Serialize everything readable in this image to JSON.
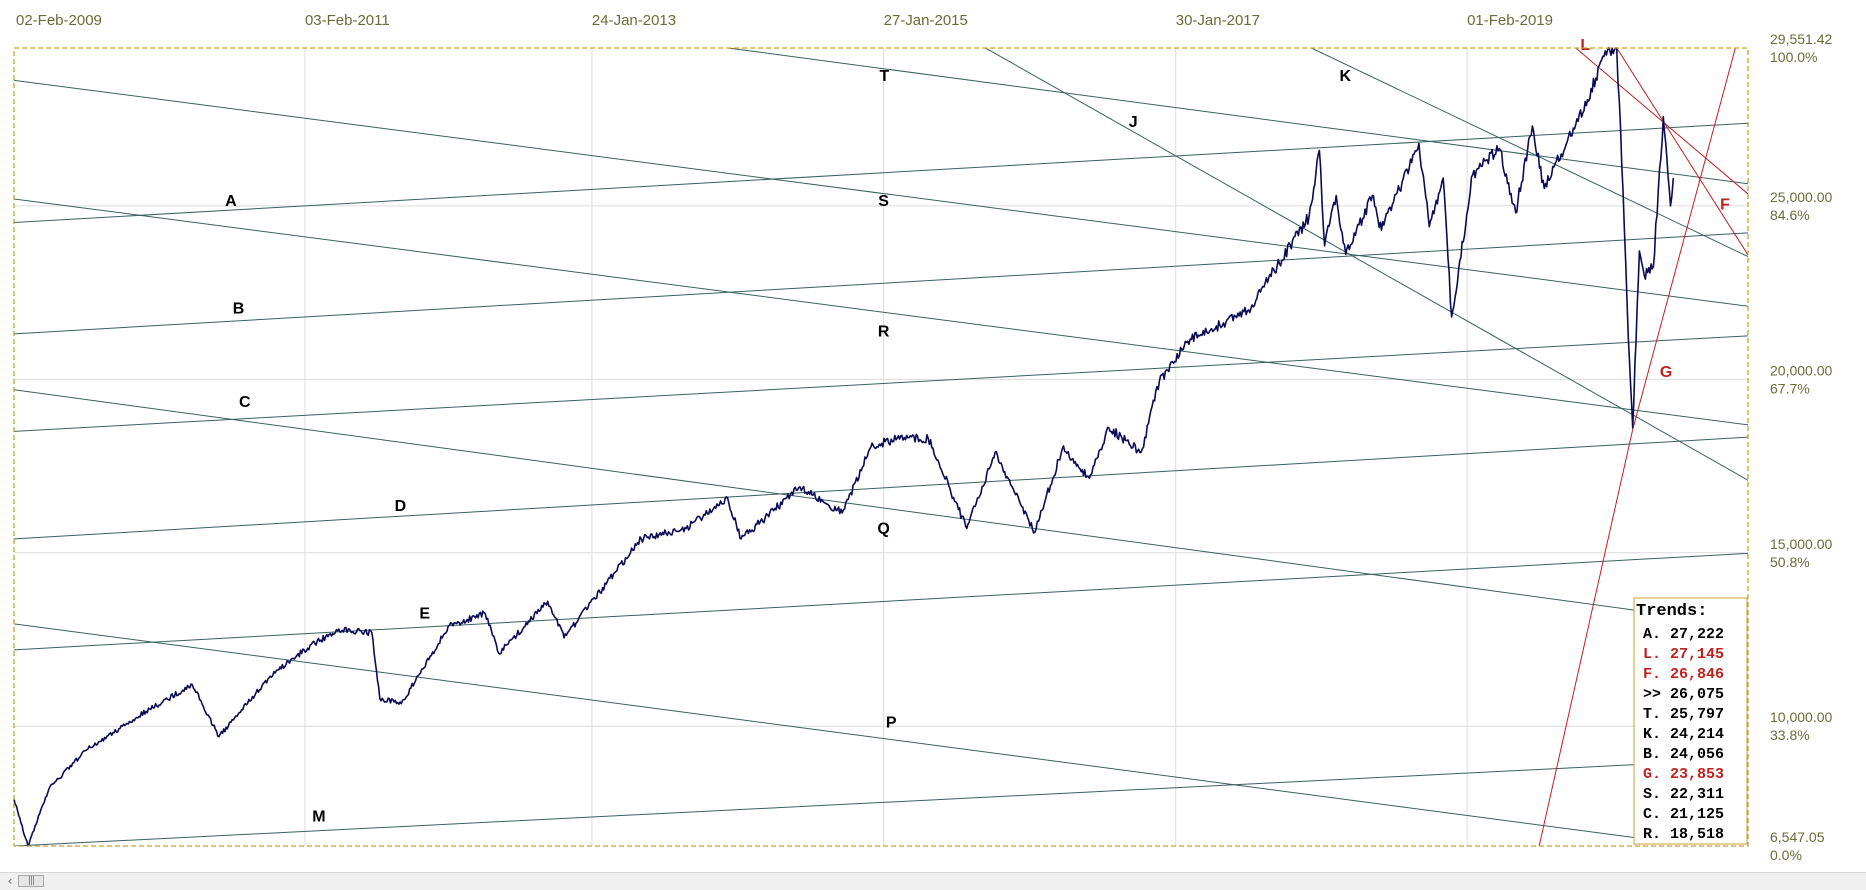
{
  "chart_data": {
    "type": "line",
    "title": "",
    "xlabel": "",
    "ylabel": "",
    "x_ticks": [
      "02-Feb-2009",
      "03-Feb-2011",
      "24-Jan-2013",
      "27-Jan-2015",
      "30-Jan-2017",
      "01-Feb-2019"
    ],
    "y_price_ticks": [
      "29,551.42",
      "25,000.00",
      "20,000.00",
      "15,000.00",
      "10,000.00",
      "6,547.05"
    ],
    "y_pct_ticks": [
      "100.0%",
      "84.6%",
      "67.7%",
      "50.8%",
      "33.8%",
      "0.0%"
    ],
    "ylim": [
      6547.05,
      29551.42
    ],
    "grid": true,
    "price_series": {
      "name": "",
      "color": "#0b0b55",
      "points": [
        [
          "2009-02-02",
          7900
        ],
        [
          "2009-03-09",
          6547
        ],
        [
          "2009-05-01",
          8200
        ],
        [
          "2009-08-01",
          9300
        ],
        [
          "2009-12-31",
          10430
        ],
        [
          "2010-04-26",
          11200
        ],
        [
          "2010-07-02",
          9700
        ],
        [
          "2010-11-05",
          11400
        ],
        [
          "2011-02-01",
          12200
        ],
        [
          "2011-04-29",
          12800
        ],
        [
          "2011-07-21",
          12700
        ],
        [
          "2011-08-10",
          10800
        ],
        [
          "2011-10-03",
          10650
        ],
        [
          "2012-02-01",
          12900
        ],
        [
          "2012-05-01",
          13250
        ],
        [
          "2012-06-04",
          12100
        ],
        [
          "2012-10-05",
          13600
        ],
        [
          "2012-11-15",
          12550
        ],
        [
          "2013-03-01",
          14100
        ],
        [
          "2013-05-28",
          15400
        ],
        [
          "2013-09-18",
          15700
        ],
        [
          "2013-12-31",
          16580
        ],
        [
          "2014-02-03",
          15400
        ],
        [
          "2014-07-01",
          16900
        ],
        [
          "2014-10-15",
          16150
        ],
        [
          "2014-12-26",
          18050
        ],
        [
          "2015-03-02",
          18300
        ],
        [
          "2015-05-19",
          18300
        ],
        [
          "2015-08-24",
          15700
        ],
        [
          "2015-11-03",
          17900
        ],
        [
          "2016-02-11",
          15600
        ],
        [
          "2016-04-20",
          18000
        ],
        [
          "2016-06-27",
          17150
        ],
        [
          "2016-08-15",
          18600
        ],
        [
          "2016-11-04",
          17900
        ],
        [
          "2016-12-20",
          19950
        ],
        [
          "2017-03-01",
          21100
        ],
        [
          "2017-08-01",
          22000
        ],
        [
          "2017-12-31",
          24700
        ],
        [
          "2018-01-26",
          26600
        ],
        [
          "2018-02-08",
          23850
        ],
        [
          "2018-03-09",
          25300
        ],
        [
          "2018-04-02",
          23600
        ],
        [
          "2018-06-08",
          25300
        ],
        [
          "2018-07-01",
          24300
        ],
        [
          "2018-10-03",
          26800
        ],
        [
          "2018-10-29",
          24400
        ],
        [
          "2018-12-03",
          25800
        ],
        [
          "2018-12-24",
          21800
        ],
        [
          "2019-02-15",
          25900
        ],
        [
          "2019-04-23",
          26650
        ],
        [
          "2019-06-03",
          24800
        ],
        [
          "2019-07-15",
          27300
        ],
        [
          "2019-08-14",
          25500
        ],
        [
          "2019-11-01",
          27350
        ],
        [
          "2020-01-17",
          29350
        ],
        [
          "2020-02-12",
          29551
        ],
        [
          "2020-02-28",
          25400
        ],
        [
          "2020-03-12",
          21200
        ],
        [
          "2020-03-23",
          18600
        ],
        [
          "2020-04-09",
          23700
        ],
        [
          "2020-04-21",
          23000
        ],
        [
          "2020-05-14",
          23250
        ],
        [
          "2020-06-08",
          27570
        ],
        [
          "2020-06-26",
          25000
        ],
        [
          "2020-07-03",
          25800
        ]
      ]
    },
    "trend_lines": [
      {
        "label": "A",
        "color": "#3a6060",
        "p1": [
          "2009-02-02",
          24520
        ],
        "p2": [
          "2021-02-01",
          27400
        ]
      },
      {
        "label": "B",
        "color": "#3a6060",
        "p1": [
          "2009-02-02",
          21310
        ],
        "p2": [
          "2021-02-01",
          24240
        ]
      },
      {
        "label": "C",
        "color": "#3a6060",
        "p1": [
          "2009-02-02",
          18500
        ],
        "p2": [
          "2021-02-01",
          21270
        ]
      },
      {
        "label": "D",
        "color": "#3a6060",
        "p1": [
          "2009-02-02",
          15400
        ],
        "p2": [
          "2021-02-01",
          18350
        ]
      },
      {
        "label": "E",
        "color": "#3a6060",
        "p1": [
          "2009-02-02",
          12200
        ],
        "p2": [
          "2021-02-01",
          15000
        ]
      },
      {
        "label": "M",
        "color": "#3a6060",
        "p1": [
          "2009-02-02",
          6547
        ],
        "p2": [
          "2021-02-01",
          9070
        ]
      },
      {
        "label": "T",
        "color": "#3a6060",
        "p1": [
          "2014-01-01",
          29551
        ],
        "p2": [
          "2021-02-01",
          25600
        ]
      },
      {
        "label": "S",
        "color": "#3a6060",
        "p1": [
          "2009-02-02",
          28620
        ],
        "p2": [
          "2021-02-01",
          22070
        ]
      },
      {
        "label": "R",
        "color": "#3a6060",
        "p1": [
          "2009-02-02",
          25200
        ],
        "p2": [
          "2021-02-01",
          18650
        ]
      },
      {
        "label": "Q",
        "color": "#3a6060",
        "p1": [
          "2009-02-02",
          19700
        ],
        "p2": [
          "2020-08-01",
          13150
        ]
      },
      {
        "label": "P",
        "color": "#3a6060",
        "p1": [
          "2009-02-02",
          12950
        ],
        "p2": [
          "2020-08-01",
          6600
        ]
      },
      {
        "label": "J",
        "color": "#3a6060",
        "p1": [
          "2015-10-10",
          29551
        ],
        "p2": [
          "2021-02-01",
          16930
        ]
      },
      {
        "label": "K",
        "color": "#3a6060",
        "p1": [
          "2018-01-06",
          29551
        ],
        "p2": [
          "2021-02-01",
          23400
        ]
      },
      {
        "label": "L",
        "color": "#c02020",
        "p1": [
          "2019-11-01",
          29551
        ],
        "p2": [
          "2021-02-01",
          25100
        ]
      },
      {
        "label": "F",
        "color": "#c02020",
        "p1": [
          "2020-02-12",
          29551
        ],
        "p2": [
          "2021-02-01",
          23130
        ]
      },
      {
        "label": "G",
        "color": "#c02020",
        "p1": [
          "2020-03-23",
          18550
        ],
        "p2": [
          "2020-12-06",
          29551
        ]
      },
      {
        "label": "G-lower",
        "color": "#c02020",
        "p1": [
          "2019-08-01",
          6547
        ],
        "p2": [
          "2020-03-23",
          18550
        ]
      }
    ],
    "trend_labels": [
      {
        "text": "A",
        "color": "#000000",
        "date": "2010-08-01",
        "value": 25000
      },
      {
        "text": "B",
        "color": "#000000",
        "date": "2010-08-20",
        "value": 21900
      },
      {
        "text": "C",
        "color": "#000000",
        "date": "2010-09-05",
        "value": 19200
      },
      {
        "text": "D",
        "color": "#000000",
        "date": "2011-10-01",
        "value": 16200
      },
      {
        "text": "E",
        "color": "#000000",
        "date": "2011-12-01",
        "value": 13100
      },
      {
        "text": "M",
        "color": "#000000",
        "date": "2011-03-10",
        "value": 7250
      },
      {
        "text": "T",
        "color": "#000000",
        "date": "2015-01-29",
        "value": 28600
      },
      {
        "text": "S",
        "color": "#000000",
        "date": "2015-01-27",
        "value": 24990
      },
      {
        "text": "R",
        "color": "#000000",
        "date": "2015-01-27",
        "value": 21230
      },
      {
        "text": "Q",
        "color": "#000000",
        "date": "2015-01-27",
        "value": 15550
      },
      {
        "text": "P",
        "color": "#000000",
        "date": "2015-02-15",
        "value": 9960
      },
      {
        "text": "J",
        "color": "#000000",
        "date": "2016-10-15",
        "value": 27280
      },
      {
        "text": "K",
        "color": "#000000",
        "date": "2018-04-01",
        "value": 28600
      },
      {
        "text": "L",
        "color": "#c02020",
        "date": "2019-11-25",
        "value": 29500
      },
      {
        "text": "F",
        "color": "#c02020",
        "date": "2020-11-10",
        "value": 24900
      },
      {
        "text": "G",
        "color": "#c02020",
        "date": "2020-06-15",
        "value": 20060
      }
    ],
    "legend": {
      "title": "Trends:",
      "position": "bottom-right",
      "rows": [
        {
          "letter": "A.",
          "value": "27,222",
          "color": "#000000"
        },
        {
          "letter": "L.",
          "value": "27,145",
          "color": "#c02020"
        },
        {
          "letter": "F.",
          "value": "26,846",
          "color": "#c02020"
        },
        {
          "letter": ">>",
          "value": "26,075",
          "color": "#000000"
        },
        {
          "letter": "T.",
          "value": "25,797",
          "color": "#000000"
        },
        {
          "letter": "K.",
          "value": "24,214",
          "color": "#000000"
        },
        {
          "letter": "B.",
          "value": "24,056",
          "color": "#000000"
        },
        {
          "letter": "G.",
          "value": "23,853",
          "color": "#c02020"
        },
        {
          "letter": "S.",
          "value": "22,311",
          "color": "#000000"
        },
        {
          "letter": "C.",
          "value": "21,125",
          "color": "#000000"
        },
        {
          "letter": "R.",
          "value": "18,518",
          "color": "#000000"
        }
      ]
    }
  },
  "colors": {
    "frame": "#c8a030",
    "grid": "#dcdcdc",
    "axis_text": "#6b6b3a"
  },
  "scrollbar": {
    "left_arrow_icon": "chevron-left-icon",
    "left_arrow": "‹",
    "thumb_grip": "|||"
  }
}
